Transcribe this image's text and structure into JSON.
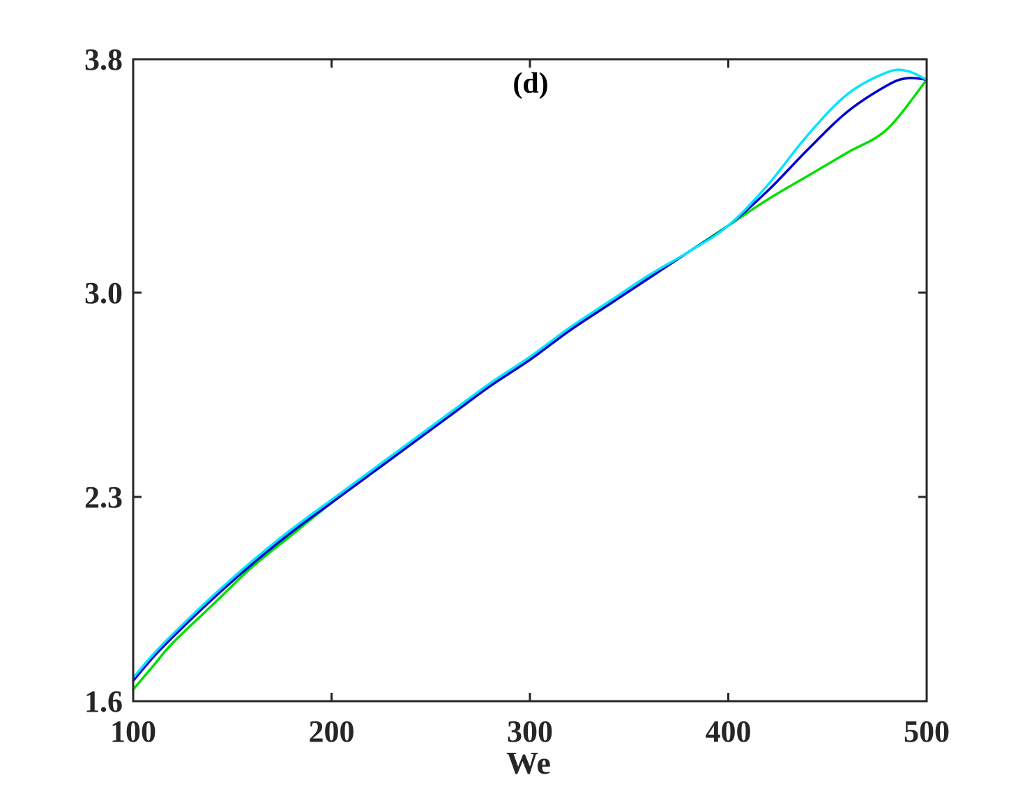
{
  "chart_data": {
    "type": "line",
    "title": "",
    "panel_label": "(d)",
    "xlabel": "We",
    "ylabel": "",
    "xlim": [
      100,
      500
    ],
    "ylim": [
      1.6,
      3.8
    ],
    "xticks": [
      100,
      200,
      300,
      400,
      500
    ],
    "xtick_labels": [
      "100",
      "200",
      "300",
      "400",
      "500"
    ],
    "yticks": [
      1.6,
      2.3,
      3.0,
      3.8
    ],
    "ytick_labels": [
      "1.6",
      "2.3",
      "3.0",
      "3.8"
    ],
    "grid": false,
    "legend": "none",
    "series": [
      {
        "color": "#00e000",
        "x": [
          100,
          110,
          120,
          140,
          160,
          180,
          200,
          220,
          240,
          260,
          280,
          300,
          320,
          340,
          360,
          380,
          400,
          420,
          440,
          460,
          480,
          500
        ],
        "y": [
          1.64,
          1.72,
          1.8,
          1.93,
          2.06,
          2.17,
          2.28,
          2.38,
          2.48,
          2.58,
          2.68,
          2.77,
          2.87,
          2.96,
          3.05,
          3.14,
          3.23,
          3.32,
          3.4,
          3.48,
          3.56,
          3.73
        ]
      },
      {
        "color": "#0000cc",
        "x": [
          100,
          110,
          120,
          140,
          160,
          180,
          200,
          220,
          240,
          260,
          280,
          300,
          320,
          340,
          360,
          380,
          400,
          420,
          440,
          460,
          480,
          490,
          500
        ],
        "y": [
          1.67,
          1.75,
          1.82,
          1.95,
          2.07,
          2.18,
          2.28,
          2.38,
          2.48,
          2.58,
          2.68,
          2.77,
          2.87,
          2.96,
          3.05,
          3.14,
          3.23,
          3.35,
          3.49,
          3.62,
          3.71,
          3.735,
          3.73
        ]
      },
      {
        "color": "#00e5ff",
        "x": [
          100,
          110,
          120,
          140,
          160,
          180,
          200,
          220,
          240,
          260,
          280,
          300,
          320,
          340,
          360,
          380,
          400,
          420,
          440,
          460,
          480,
          490,
          500
        ],
        "y": [
          1.68,
          1.76,
          1.83,
          1.96,
          2.08,
          2.19,
          2.29,
          2.39,
          2.49,
          2.59,
          2.69,
          2.78,
          2.88,
          2.97,
          3.06,
          3.14,
          3.23,
          3.37,
          3.54,
          3.68,
          3.755,
          3.76,
          3.73
        ]
      }
    ]
  }
}
